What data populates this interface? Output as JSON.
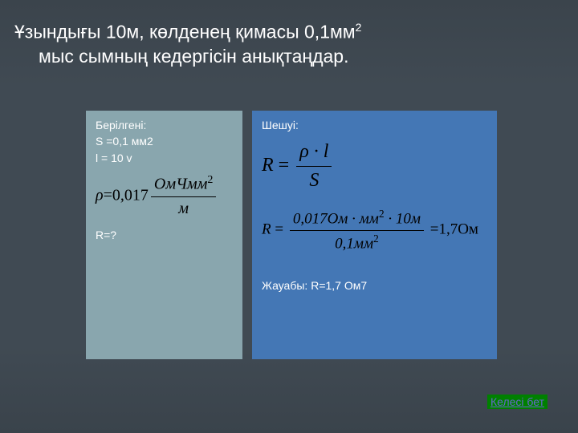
{
  "title": {
    "line1": "Ұзындығы 10м, көлденең қимасы 0,1мм",
    "sup": "2",
    "line2": "мыс сымның кедергісін анықтаңдар."
  },
  "given": {
    "heading": "Берілгені:",
    "s_line": "S =0,1 мм2",
    "l_line": "l = 10 v",
    "rho_eq_prefix": "ρ",
    "rho_eq_val": "=0,017",
    "rho_num": "ОмЧмм",
    "rho_num_sup": "2",
    "rho_den": "м",
    "r_question": "R=?"
  },
  "solution": {
    "heading": "Шешуі:",
    "eq1_lhs": "R",
    "eq1_num": "ρ · l",
    "eq1_den": "S",
    "eq2_lhs": "R",
    "eq2_num_a": "0,017Ом · мм",
    "eq2_num_sup": "2",
    "eq2_num_b": " · 10м",
    "eq2_den_a": "0,1мм",
    "eq2_den_sup": "2",
    "eq2_result": "=1,7Ом",
    "answer": "Жауабы: R=1,7 Ом7"
  },
  "nav": {
    "next": "Келесі бет"
  },
  "colors": {
    "bg": "#404A53",
    "panel_left": "#89a6ae",
    "panel_right": "#4477b5",
    "text": "#ffffff",
    "formula": "#000000",
    "btn_bg": "#008000",
    "btn_text": "#6666cc"
  }
}
